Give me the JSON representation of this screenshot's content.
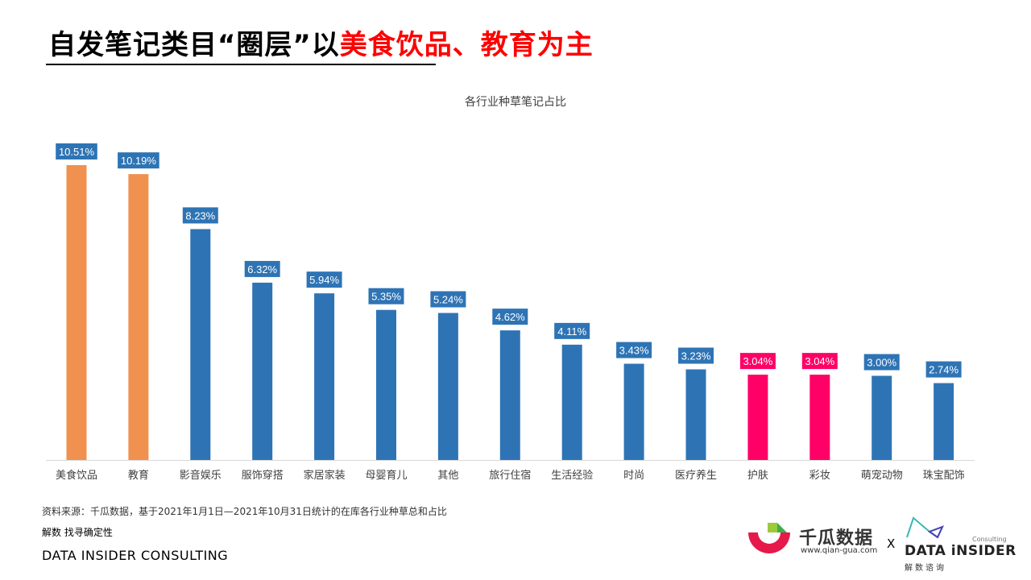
{
  "title": {
    "prefix": "自发笔记类目“圈层”以",
    "highlight": "美食饮品、教育为主"
  },
  "colors": {
    "orange": "#F0914F",
    "blue": "#2E74B5",
    "pink": "#FF0066",
    "title_red": "#FF0000"
  },
  "chart_data": {
    "type": "bar",
    "title": "各行业种草笔记占比",
    "categories": [
      "美食饮品",
      "教育",
      "影音娱乐",
      "服饰穿搭",
      "家居家装",
      "母婴育儿",
      "其他",
      "旅行住宿",
      "生活经验",
      "时尚",
      "医疗养生",
      "护肤",
      "彩妆",
      "萌宠动物",
      "珠宝配饰"
    ],
    "values": [
      10.51,
      10.19,
      8.23,
      6.32,
      5.94,
      5.35,
      5.24,
      4.62,
      4.11,
      3.43,
      3.23,
      3.04,
      3.04,
      3.0,
      2.74
    ],
    "data_labels": [
      "10.51%",
      "10.19%",
      "8.23%",
      "6.32%",
      "5.94%",
      "5.35%",
      "5.24%",
      "4.62%",
      "4.11%",
      "3.43%",
      "3.23%",
      "3.04%",
      "3.04%",
      "3.00%",
      "2.74%"
    ],
    "bar_colors": [
      "orange",
      "orange",
      "blue",
      "blue",
      "blue",
      "blue",
      "blue",
      "blue",
      "blue",
      "blue",
      "blue",
      "pink",
      "pink",
      "blue",
      "blue"
    ],
    "unit": "%",
    "ylim": [
      0,
      10.51
    ],
    "grid": false,
    "legend": "none"
  },
  "footer": {
    "source": "资料来源：千瓜数据，基于2021年1月1日—2021年10月31日统计的在库各行业种草总和占比",
    "slogan": "解数 找寻确定性",
    "brand": "DATA INSIDER CONSULTING"
  },
  "logos": {
    "qiangua_name": "千瓜数据",
    "qiangua_url": "www.qian-gua.com",
    "separator": "X",
    "di_consulting": "Consulting",
    "di_name": "DATA iNSIDER",
    "di_cn": "解数谘询"
  }
}
